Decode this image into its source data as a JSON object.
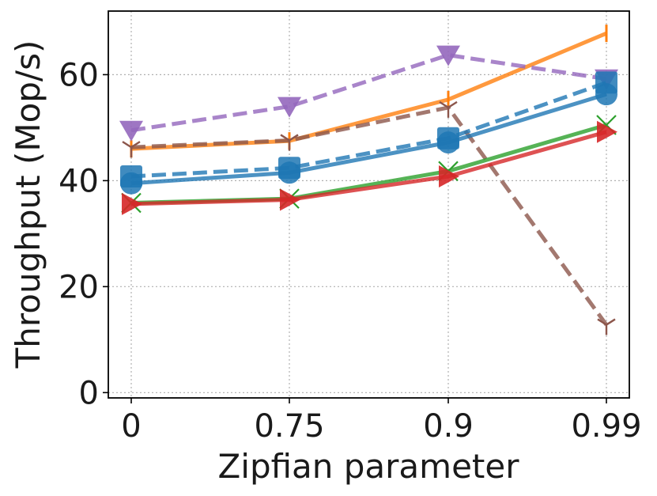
{
  "chart_data": {
    "type": "line",
    "title": "",
    "xlabel": "Zipfian parameter",
    "ylabel": "Throughput (Mop/s)",
    "categories": [
      "0",
      "0.75",
      "0.9",
      "0.99"
    ],
    "ylim": [
      -1,
      72
    ],
    "yticks": [
      0,
      20,
      40,
      60
    ],
    "grid": true,
    "legend": "none",
    "series": [
      {
        "values": [
          46.0,
          47.5,
          55.3,
          67.8
        ],
        "color": "#ff7f0e",
        "dash": "solid",
        "marker": "vline-icon"
      },
      {
        "values": [
          49.5,
          54.0,
          63.7,
          59.2
        ],
        "color": "#9467bd",
        "dash": "dashed",
        "marker": "triangle-down-icon"
      },
      {
        "values": [
          46.3,
          47.6,
          53.8,
          12.8
        ],
        "color": "#8c564b",
        "dash": "dashed",
        "marker": "tri-down-icon"
      },
      {
        "values": [
          40.8,
          42.4,
          48.0,
          58.5
        ],
        "color": "#1f77b4",
        "dash": "dashed",
        "marker": "square-icon"
      },
      {
        "values": [
          39.5,
          41.5,
          47.2,
          56.3
        ],
        "color": "#1f77b4",
        "dash": "solid",
        "marker": "circle-icon"
      },
      {
        "values": [
          35.8,
          36.6,
          41.8,
          50.5
        ],
        "color": "#2ca02c",
        "dash": "solid",
        "marker": "x-icon"
      },
      {
        "values": [
          35.6,
          36.4,
          40.8,
          49.2
        ],
        "color": "#d62728",
        "dash": "solid",
        "marker": "triangle-right-icon"
      }
    ]
  }
}
